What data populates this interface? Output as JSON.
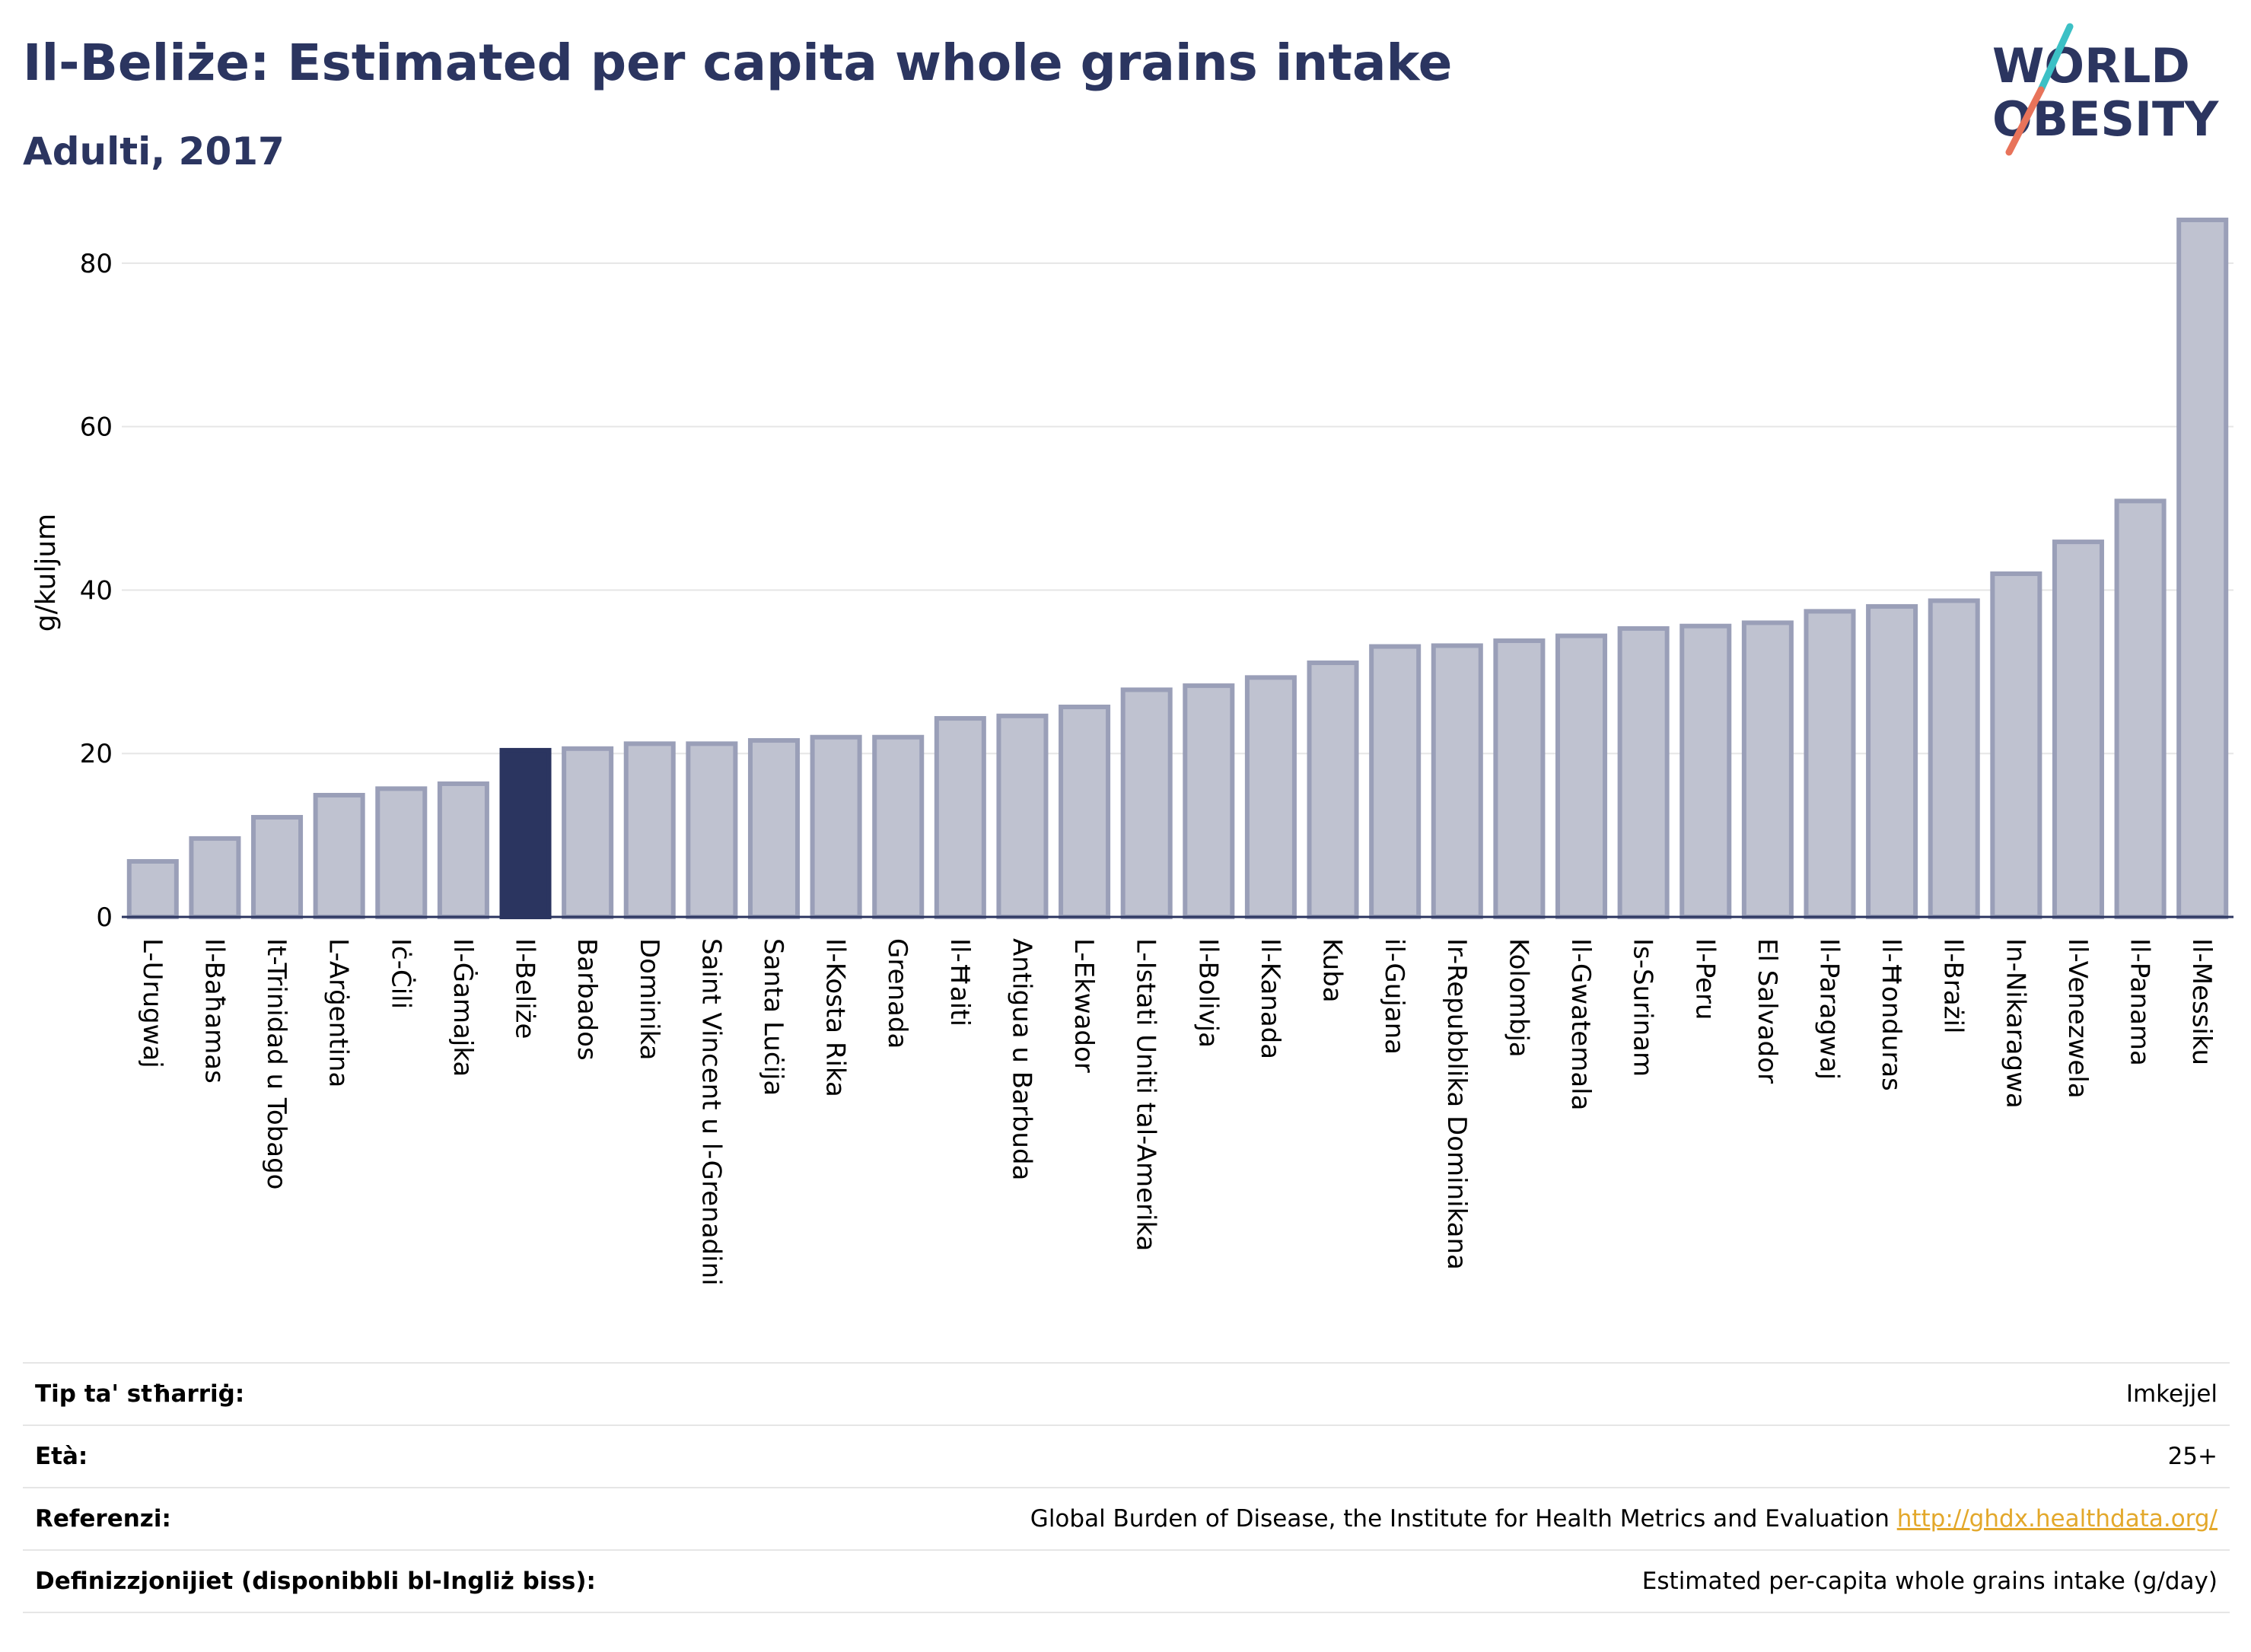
{
  "title": "Il-Beliże: Estimated per capita whole grains intake",
  "subtitle": "Adulti, 2017",
  "logo": {
    "line1": "WORLD",
    "line2": "OBESITY",
    "accent_colors": [
      "#3cc0c5",
      "#e8735a"
    ],
    "text_color": "#2b3560"
  },
  "chart_data": {
    "type": "bar",
    "ylabel": "g/kuljum",
    "ylim": [
      0,
      88
    ],
    "yticks": [
      0,
      20,
      40,
      60,
      80
    ],
    "grid": true,
    "highlight": "Il-Beliże",
    "colors": {
      "bar": "#bfc2d0",
      "bar_edge": "#9a9fb8",
      "highlight": "#2b3560",
      "axis": "#2b3560",
      "grid": "#e6e6e6"
    },
    "categories": [
      "L-Urugwaj",
      "Il-Baħamas",
      "It-Trinidad u Tobago",
      "L-Arġentina",
      "Iċ-Ċili",
      "Il-Ġamajka",
      "Il-Beliże",
      "Barbados",
      "Dominika",
      "Saint Vincent u l-Grenadini",
      "Santa Luċija",
      "Il-Kosta Rika",
      "Grenada",
      "Il-Ħaiti",
      "Antigua u Barbuda",
      "L-Ekwador",
      "L-Istati Uniti tal-Amerika",
      "Il-Bolivja",
      "Il-Kanada",
      "Kuba",
      "il-Gujana",
      "Ir-Repubblika Dominikana",
      "Kolombja",
      "Il-Gwatemala",
      "Is-Surinam",
      "Il-Peru",
      "El Salvador",
      "Il-Paragwaj",
      "Il-Ħonduras",
      "Il-Brażil",
      "In-Nikaragwa",
      "Il-Venezwela",
      "Il-Panama",
      "Il-Messiku"
    ],
    "values": [
      6.8,
      9.6,
      12.2,
      14.9,
      15.7,
      16.3,
      20.4,
      20.6,
      21.2,
      21.2,
      21.6,
      22.0,
      22.0,
      24.3,
      24.6,
      25.7,
      27.8,
      28.3,
      29.3,
      31.1,
      33.1,
      33.2,
      33.8,
      34.4,
      35.3,
      35.6,
      36.0,
      37.4,
      38.0,
      38.7,
      42.0,
      45.9,
      50.9,
      85.3
    ]
  },
  "info": [
    {
      "label": "Tip ta' stħarriġ:",
      "value": "Imkejjel"
    },
    {
      "label": "Età:",
      "value": "25+"
    },
    {
      "label": "Referenzi:",
      "value": "Global Burden of Disease, the Institute for Health Metrics and Evaluation",
      "link": "http://ghdx.healthdata.org/"
    },
    {
      "label": "Definizzjonijiet (disponibbli bl-Ingliż biss):",
      "value": "Estimated per-capita whole grains intake (g/day)"
    }
  ]
}
